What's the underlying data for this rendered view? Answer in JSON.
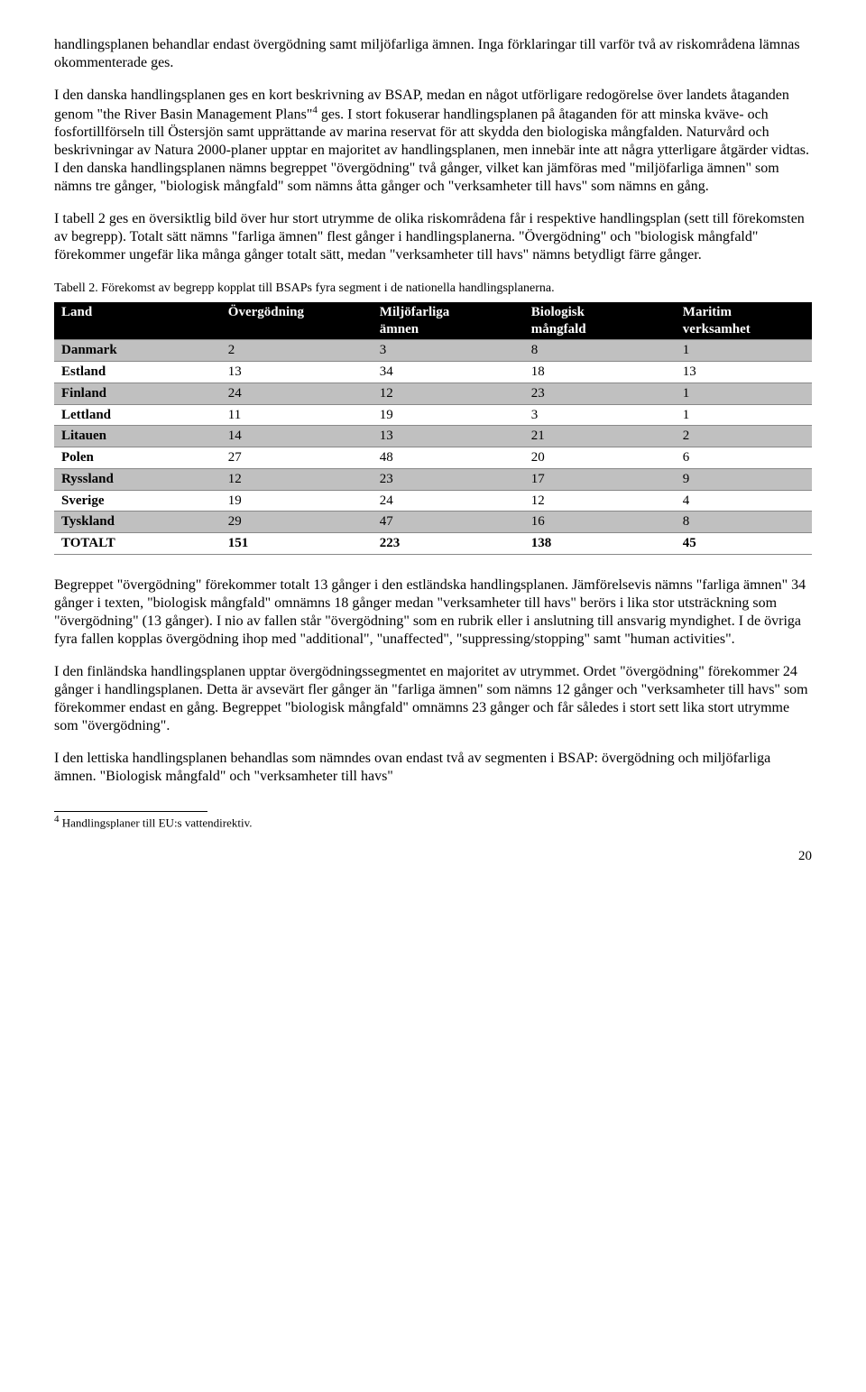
{
  "paragraphs": {
    "p1": "handlingsplanen behandlar endast övergödning samt miljöfarliga ämnen. Inga förklaringar till varför två av riskområdena lämnas okommenterade ges.",
    "p2a": "I den danska handlingsplanen ges en kort beskrivning av BSAP, medan en något utförligare redogörelse över landets åtaganden genom \"the River Basin Management Plans\"",
    "p2sup": "4",
    "p2b": " ges. I stort fokuserar handlingsplanen på åtaganden för att minska kväve- och fosfortillförseln till Östersjön samt upprättande av marina reservat för att skydda den biologiska mångfalden. Naturvård och beskrivningar av Natura 2000-planer upptar en majoritet av handlingsplanen, men innebär inte att några ytterligare åtgärder vidtas. I den danska handlingsplanen nämns begreppet \"övergödning\" två gånger, vilket kan jämföras med \"miljöfarliga ämnen\" som nämns tre gånger, \"biologisk mångfald\" som nämns åtta gånger och \"verksamheter till havs\" som nämns en gång.",
    "p3": "I tabell 2 ges en översiktlig bild över hur stort utrymme de olika riskområdena får i respektive handlingsplan (sett till förekomsten av begrepp). Totalt sätt nämns \"farliga ämnen\" flest gånger i handlingsplanerna. \"Övergödning\" och \"biologisk mångfald\" förekommer ungefär lika många gånger totalt sätt, medan \"verksamheter till havs\" nämns betydligt färre gånger.",
    "p4": "Begreppet \"övergödning\" förekommer totalt 13 gånger i den estländska handlingsplanen. Jämförelsevis nämns \"farliga ämnen\" 34 gånger i texten, \"biologisk mångfald\" omnämns 18 gånger medan \"verksamheter till havs\" berörs i lika stor utsträckning som \"övergödning\" (13 gånger). I nio av fallen står \"övergödning\" som en rubrik eller i anslutning till ansvarig myndighet. I de övriga fyra fallen kopplas övergödning ihop med \"additional\", \"unaffected\", \"suppressing/stopping\" samt \"human activities\".",
    "p5": "I den finländska handlingsplanen upptar övergödningssegmentet en majoritet av utrymmet. Ordet \"övergödning\" förekommer 24 gånger i handlingsplanen. Detta är avsevärt fler gånger än \"farliga ämnen\" som nämns 12 gånger och \"verksamheter till havs\" som förekommer endast en gång. Begreppet \"biologisk mångfald\" omnämns 23 gånger och får således i stort sett lika stort utrymme som \"övergödning\".",
    "p6": "I den lettiska handlingsplanen behandlas som nämndes ovan endast två av segmenten i BSAP: övergödning och miljöfarliga ämnen. \"Biologisk mångfald\" och \"verksamheter till havs\""
  },
  "table": {
    "caption": "Tabell 2. Förekomst av begrepp kopplat till BSAPs fyra segment i de nationella handlingsplanerna.",
    "columns": [
      "Land",
      "Övergödning",
      "Miljöfarliga ämnen",
      "Biologisk mångfald",
      "Maritim verksamhet"
    ],
    "col_widths": [
      "22%",
      "20%",
      "20%",
      "20%",
      "18%"
    ],
    "header_bg": "#000000",
    "header_fg": "#ffffff",
    "shade_bg": "#c0c0c0",
    "rows": [
      {
        "cells": [
          "Danmark",
          "2",
          "3",
          "8",
          "1"
        ],
        "shaded": true
      },
      {
        "cells": [
          "Estland",
          "13",
          "34",
          "18",
          "13"
        ],
        "shaded": false
      },
      {
        "cells": [
          "Finland",
          "24",
          "12",
          "23",
          "1"
        ],
        "shaded": true
      },
      {
        "cells": [
          "Lettland",
          "11",
          "19",
          "3",
          "1"
        ],
        "shaded": false
      },
      {
        "cells": [
          "Litauen",
          "14",
          "13",
          "21",
          "2"
        ],
        "shaded": true
      },
      {
        "cells": [
          "Polen",
          "27",
          "48",
          "20",
          "6"
        ],
        "shaded": false
      },
      {
        "cells": [
          "Ryssland",
          "12",
          "23",
          "17",
          "9"
        ],
        "shaded": true
      },
      {
        "cells": [
          "Sverige",
          "19",
          "24",
          "12",
          "4"
        ],
        "shaded": false
      },
      {
        "cells": [
          "Tyskland",
          "29",
          "47",
          "16",
          "8"
        ],
        "shaded": true
      },
      {
        "cells": [
          "TOTALT",
          "151",
          "223",
          "138",
          "45"
        ],
        "shaded": false
      }
    ]
  },
  "footnote": {
    "marker": "4",
    "text": " Handlingsplaner till EU:s vattendirektiv."
  },
  "page_number": "20"
}
